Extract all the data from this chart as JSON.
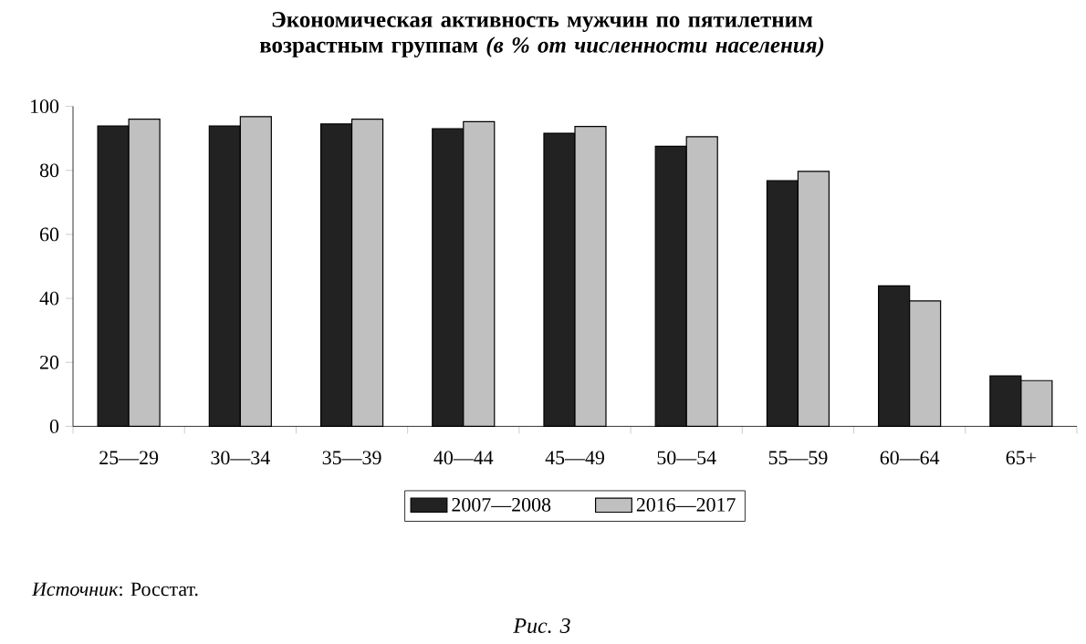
{
  "chart_data": {
    "type": "bar",
    "title": "Экономическая активность мужчин по пятилетним возрастным группам *(в % от численности населения)*",
    "categories": [
      "25—29",
      "30—34",
      "35—39",
      "40—44",
      "45—49",
      "50—54",
      "55—59",
      "60—64",
      "65+"
    ],
    "series": [
      {
        "name": "2007—2008",
        "color": "#222222",
        "values": [
          93.9,
          93.9,
          94.5,
          93.0,
          91.6,
          87.5,
          76.8,
          43.9,
          15.8
        ]
      },
      {
        "name": "2016—2017",
        "color": "#c0c0c0",
        "values": [
          96.0,
          96.8,
          96.0,
          95.2,
          93.7,
          90.5,
          79.7,
          39.2,
          14.3
        ]
      }
    ],
    "ylim": [
      0,
      100
    ],
    "yticks": [
      0,
      20,
      40,
      60,
      80,
      100
    ],
    "grid": false,
    "legend": "bottom",
    "annotations": [
      "*Источник*: Росстат.",
      "Рис. 3"
    ]
  }
}
